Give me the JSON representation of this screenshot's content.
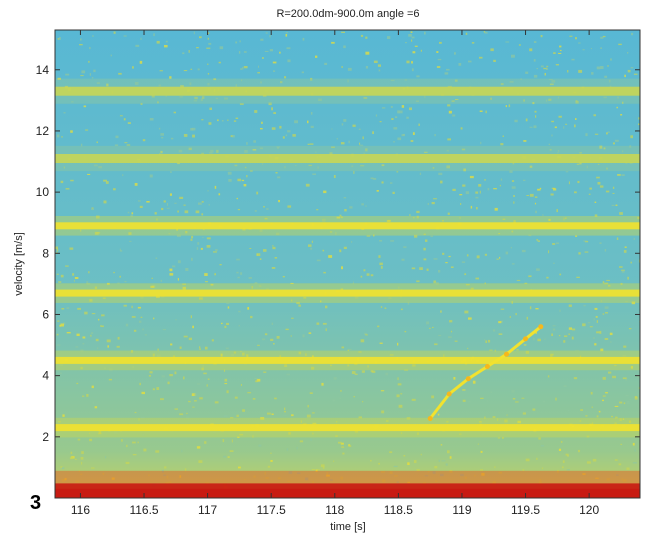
{
  "chart_data": {
    "type": "heatmap",
    "title": "R=200.0dm-900.0m  angle =6",
    "xlabel": "time [s]",
    "ylabel": "velocity [m/s]",
    "xlim": [
      115.8,
      120.4
    ],
    "ylim": [
      0,
      15.3
    ],
    "x_ticks": [
      116,
      116.5,
      117,
      117.5,
      118,
      118.5,
      119,
      119.5,
      120
    ],
    "x_tick_labels": [
      "116",
      "116.5",
      "117",
      "117.5",
      "118",
      "118.5",
      "119",
      "119.5",
      "120"
    ],
    "y_ticks": [
      2,
      4,
      6,
      8,
      10,
      12,
      14
    ],
    "y_tick_labels": [
      "2",
      "4",
      "6",
      "8",
      "10",
      "12",
      "14"
    ],
    "colormap": [
      "#4fb8d6",
      "#8ec7a0",
      "#c8d655",
      "#f2e22e",
      "#f6b81c",
      "#e8511a",
      "#c81a12"
    ],
    "background_color": "#5fbccf",
    "horizontal_bands": [
      {
        "velocity": 0.25,
        "intensity": "very high"
      },
      {
        "velocity": 2.3,
        "intensity": "high"
      },
      {
        "velocity": 4.5,
        "intensity": "high"
      },
      {
        "velocity": 6.7,
        "intensity": "high"
      },
      {
        "velocity": 8.9,
        "intensity": "high"
      },
      {
        "velocity": 11.1,
        "intensity": "medium"
      },
      {
        "velocity": 13.3,
        "intensity": "medium"
      }
    ],
    "trace": {
      "x": [
        118.75,
        118.9,
        119.05,
        119.2,
        119.35,
        119.5,
        119.62
      ],
      "y": [
        2.6,
        3.4,
        3.9,
        4.3,
        4.7,
        5.2,
        5.6
      ]
    }
  },
  "panel_label": "3"
}
